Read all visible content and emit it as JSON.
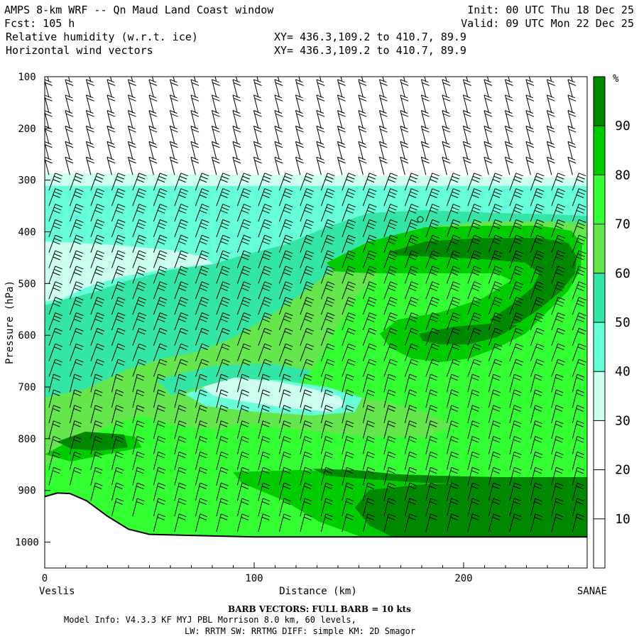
{
  "header": {
    "title": "AMPS 8-km WRF -- Qn Maud Land Coast window",
    "fcst": "Fcst: 105 h",
    "init": "Init: 00 UTC Thu 18 Dec 25",
    "valid": "Valid: 09 UTC Mon 22 Dec 25",
    "field1": "Relative humidity (w.r.t. ice)",
    "field2": "Horizontal wind vectors",
    "xy1": "XY= 436.3,109.2 to 410.7, 89.9",
    "xy2": "XY= 436.3,109.2 to 410.7, 89.9"
  },
  "footer": {
    "left_station": "Veslis",
    "right_station": "SANAE",
    "barb_note": "BARB VECTORS: FULL BARB = 10 kts",
    "model_line1": "Model Info: V4.3.3   KF      MYJ PBL  Morrison           8.0 km,  60 levels,",
    "model_line2": "LW: RRTM SW: RRTMG   DIFF: simple KM: 2D Smagor"
  },
  "colors": {
    "rh_30_40": "#ccfff0",
    "rh_40_50": "#66ffd9",
    "rh_50_60": "#33e6a6",
    "rh_60_70": "#66e64d",
    "rh_70_80": "#33ff33",
    "rh_80_90": "#00cc00",
    "rh_90_100": "#008800"
  },
  "chart_data": {
    "type": "heatmap",
    "title": "Relative humidity (w.r.t. ice)",
    "xlabel": "Distance (km)",
    "ylabel": "Pressure (hPa)",
    "xlim": [
      0,
      259
    ],
    "ylim": [
      1050,
      100
    ],
    "x_ticks": [
      0,
      100,
      200
    ],
    "y_ticks": [
      100,
      200,
      300,
      400,
      500,
      600,
      700,
      800,
      900,
      1000
    ],
    "colorbar": {
      "unit": "%",
      "levels": [
        10,
        20,
        30,
        40,
        50,
        60,
        70,
        80,
        90
      ],
      "bands": [
        "white",
        "white",
        "white",
        "#ccfff0",
        "#66ffd9",
        "#33e6a6",
        "#66e64d",
        "#33ff33",
        "#00cc00",
        "#008800"
      ]
    },
    "terrain_pressure": [
      [
        0,
        912
      ],
      [
        6,
        905
      ],
      [
        12,
        906
      ],
      [
        20,
        920
      ],
      [
        30,
        950
      ],
      [
        40,
        975
      ],
      [
        50,
        985
      ],
      [
        70,
        987
      ],
      [
        100,
        990
      ],
      [
        150,
        990
      ],
      [
        200,
        990
      ],
      [
        259,
        990
      ]
    ],
    "barb_note": "FULL BARB = 10 kts"
  }
}
